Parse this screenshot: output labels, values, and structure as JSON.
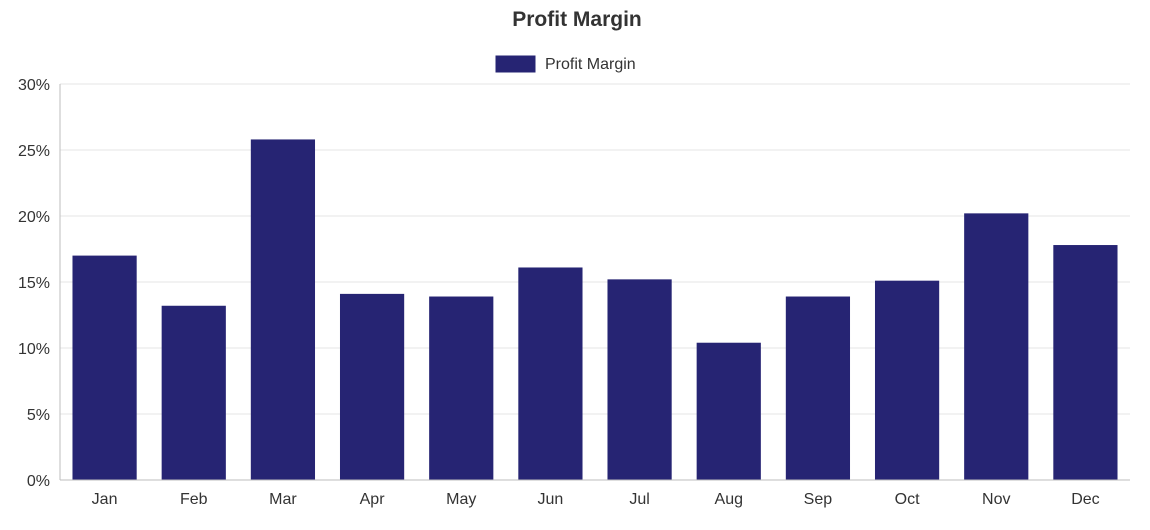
{
  "chart_data": {
    "type": "bar",
    "title": "Profit Margin",
    "legend": {
      "position": "top-center"
    },
    "series": [
      {
        "name": "Profit Margin",
        "color": "#262473",
        "values": [
          17.0,
          13.2,
          25.8,
          14.1,
          13.9,
          16.1,
          15.2,
          10.4,
          13.9,
          15.1,
          20.2,
          17.8
        ]
      }
    ],
    "categories": [
      "Jan",
      "Feb",
      "Mar",
      "Apr",
      "May",
      "Jun",
      "Jul",
      "Aug",
      "Sep",
      "Oct",
      "Nov",
      "Dec"
    ],
    "y_ticks": [
      "0%",
      "5%",
      "10%",
      "15%",
      "20%",
      "25%",
      "30%"
    ],
    "ylim": [
      0,
      30
    ],
    "y_unit": "%",
    "grid": true
  }
}
